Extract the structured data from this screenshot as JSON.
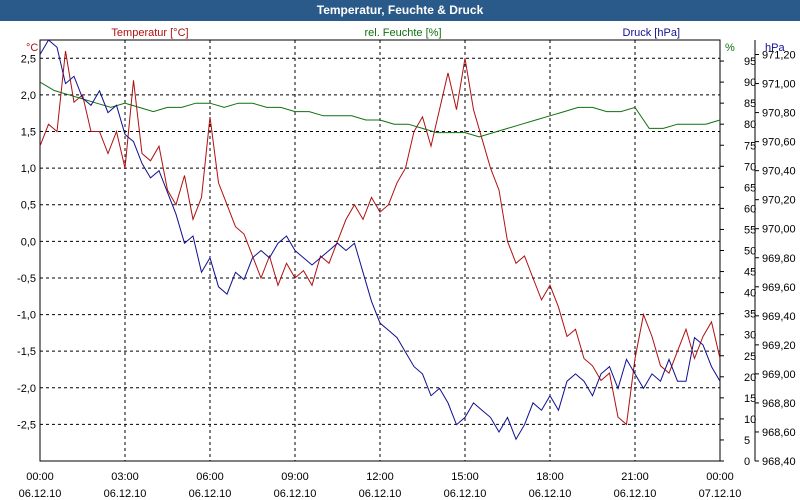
{
  "window": {
    "title": "Temperatur, Feuchte & Druck"
  },
  "chart_data": {
    "type": "line",
    "legend": {
      "temperature": "Temperatur [°C]",
      "humidity": "rel. Feuchte [%]",
      "pressure": "Druck [hPa]"
    },
    "colors": {
      "temperature": "#b01010",
      "humidity": "#107010",
      "pressure": "#101090"
    },
    "y_left": {
      "unit": "°C",
      "range": [
        -3.0,
        2.75
      ],
      "ticks": [
        2.5,
        2.0,
        1.5,
        1.0,
        0.5,
        0.0,
        -0.5,
        -1.0,
        -1.5,
        -2.0,
        -2.5
      ],
      "tick_labels": [
        "2,5",
        "2,0",
        "1,5",
        "1,0",
        "0,5",
        "0,0",
        "-0,5",
        "-1,0",
        "-1,5",
        "-2,0",
        "-2,5"
      ]
    },
    "y_mid": {
      "unit": "%",
      "range": [
        0,
        100
      ],
      "ticks": [
        95,
        90,
        85,
        80,
        75,
        70,
        65,
        60,
        55,
        50,
        45,
        40,
        35,
        30,
        25,
        20,
        15,
        10,
        5,
        0
      ],
      "tick_labels": [
        "95",
        "90",
        "85",
        "80",
        "75",
        "70",
        "65",
        "60",
        "55",
        "50",
        "45",
        "40",
        "35",
        "30",
        "25",
        "20",
        "15",
        "10",
        "5",
        "0"
      ]
    },
    "y_right": {
      "unit": "hPa",
      "range": [
        968.4,
        971.3
      ],
      "ticks": [
        971.2,
        971.0,
        970.8,
        970.6,
        970.4,
        970.2,
        970.0,
        969.8,
        969.6,
        969.4,
        969.2,
        969.0,
        968.8,
        968.6,
        968.4
      ],
      "tick_labels": [
        "971,20",
        "971,00",
        "970,80",
        "970,60",
        "970,40",
        "970,20",
        "970,00",
        "969,80",
        "969,60",
        "969,40",
        "969,20",
        "969,00",
        "968,80",
        "968,60",
        "968,40"
      ]
    },
    "x_labels": [
      {
        "time": "00:00",
        "date": "06.12.10"
      },
      {
        "time": "03:00",
        "date": "06.12.10"
      },
      {
        "time": "06:00",
        "date": "06.12.10"
      },
      {
        "time": "09:00",
        "date": "06.12.10"
      },
      {
        "time": "12:00",
        "date": "06.12.10"
      },
      {
        "time": "15:00",
        "date": "06.12.10"
      },
      {
        "time": "18:00",
        "date": "06.12.10"
      },
      {
        "time": "21:00",
        "date": "06.12.10"
      },
      {
        "time": "00:00",
        "date": "07.12.10"
      }
    ],
    "x_range_hours": [
      0,
      24
    ],
    "grid": true,
    "series": [
      {
        "key": "temperature",
        "name": "Temperatur [°C]",
        "axis": "left",
        "x": [
          0,
          0.3,
          0.6,
          0.9,
          1.2,
          1.5,
          1.8,
          2.1,
          2.4,
          2.7,
          3.0,
          3.3,
          3.6,
          3.9,
          4.2,
          4.5,
          4.8,
          5.1,
          5.4,
          5.7,
          6.0,
          6.3,
          6.6,
          6.9,
          7.2,
          7.5,
          7.8,
          8.1,
          8.4,
          8.7,
          9.0,
          9.3,
          9.6,
          9.9,
          10.2,
          10.5,
          10.8,
          11.1,
          11.4,
          11.7,
          12.0,
          12.3,
          12.6,
          12.9,
          13.2,
          13.5,
          13.8,
          14.1,
          14.4,
          14.7,
          15.0,
          15.3,
          15.6,
          15.9,
          16.2,
          16.5,
          16.8,
          17.1,
          17.4,
          17.7,
          18.0,
          18.3,
          18.6,
          18.9,
          19.2,
          19.5,
          19.8,
          20.1,
          20.4,
          20.7,
          21.0,
          21.3,
          21.6,
          21.9,
          22.2,
          22.5,
          22.8,
          23.1,
          23.4,
          23.7,
          24.0
        ],
        "values": [
          1.3,
          1.6,
          1.5,
          2.6,
          1.9,
          2.0,
          1.5,
          1.5,
          1.2,
          1.5,
          1.0,
          2.2,
          1.2,
          1.1,
          1.3,
          0.7,
          0.5,
          0.9,
          0.3,
          0.6,
          1.7,
          0.8,
          0.5,
          0.2,
          0.1,
          -0.2,
          -0.5,
          -0.2,
          -0.6,
          -0.3,
          -0.5,
          -0.4,
          -0.6,
          -0.2,
          -0.3,
          0.0,
          0.3,
          0.5,
          0.3,
          0.6,
          0.4,
          0.5,
          0.8,
          1.0,
          1.5,
          1.7,
          1.3,
          1.8,
          2.3,
          1.8,
          2.5,
          1.8,
          1.4,
          1.0,
          0.7,
          0.0,
          -0.3,
          -0.2,
          -0.5,
          -0.8,
          -0.6,
          -0.9,
          -1.3,
          -1.2,
          -1.6,
          -1.7,
          -1.9,
          -1.8,
          -2.4,
          -2.5,
          -1.6,
          -1.0,
          -1.3,
          -1.7,
          -1.8,
          -1.5,
          -1.2,
          -1.6,
          -1.3,
          -1.1,
          -1.6
        ]
      },
      {
        "key": "humidity",
        "name": "rel. Feuchte [%]",
        "axis": "mid",
        "x": [
          0,
          0.5,
          1.0,
          1.5,
          2.0,
          2.5,
          3.0,
          3.5,
          4.0,
          4.5,
          5.0,
          5.5,
          6.0,
          6.5,
          7.0,
          7.5,
          8.0,
          8.5,
          9.0,
          9.5,
          10.0,
          10.5,
          11.0,
          11.5,
          12.0,
          12.5,
          13.0,
          13.5,
          14.0,
          14.5,
          15.0,
          15.5,
          16.0,
          16.5,
          17.0,
          17.5,
          18.0,
          18.5,
          19.0,
          19.5,
          20.0,
          20.5,
          21.0,
          21.5,
          22.0,
          22.5,
          23.0,
          23.5,
          24.0
        ],
        "values": [
          90,
          88,
          87,
          86,
          85,
          84,
          85,
          84,
          83,
          84,
          84,
          85,
          85,
          84,
          85,
          85,
          84,
          84,
          83,
          83,
          82,
          82,
          82,
          81,
          81,
          80,
          80,
          79,
          78,
          78,
          78,
          77,
          78,
          79,
          80,
          81,
          82,
          83,
          84,
          84,
          83,
          83,
          84,
          79,
          79,
          80,
          80,
          80,
          81
        ]
      },
      {
        "key": "pressure",
        "name": "Druck [hPa]",
        "axis": "right",
        "x": [
          0,
          0.3,
          0.6,
          0.9,
          1.2,
          1.5,
          1.8,
          2.1,
          2.4,
          2.7,
          3.0,
          3.3,
          3.6,
          3.9,
          4.2,
          4.5,
          4.8,
          5.1,
          5.4,
          5.7,
          6.0,
          6.3,
          6.6,
          6.9,
          7.2,
          7.5,
          7.8,
          8.1,
          8.4,
          8.7,
          9.0,
          9.3,
          9.6,
          9.9,
          10.2,
          10.5,
          10.8,
          11.1,
          11.4,
          11.7,
          12.0,
          12.3,
          12.6,
          12.9,
          13.2,
          13.5,
          13.8,
          14.1,
          14.4,
          14.7,
          15.0,
          15.3,
          15.6,
          15.9,
          16.2,
          16.5,
          16.8,
          17.1,
          17.4,
          17.7,
          18.0,
          18.3,
          18.6,
          18.9,
          19.2,
          19.5,
          19.8,
          20.1,
          20.4,
          20.7,
          21.0,
          21.3,
          21.6,
          21.9,
          22.2,
          22.5,
          22.8,
          23.1,
          23.4,
          23.7,
          24.0
        ],
        "values": [
          971.2,
          971.3,
          971.25,
          971.0,
          971.05,
          970.9,
          970.85,
          970.95,
          970.8,
          970.85,
          970.65,
          970.6,
          970.45,
          970.35,
          970.4,
          970.25,
          970.1,
          969.9,
          969.95,
          969.7,
          969.8,
          969.6,
          969.55,
          969.7,
          969.65,
          969.8,
          969.85,
          969.8,
          969.9,
          969.95,
          969.85,
          969.8,
          969.75,
          969.8,
          969.85,
          969.9,
          969.85,
          969.9,
          969.7,
          969.5,
          969.35,
          969.3,
          969.25,
          969.15,
          969.05,
          969.0,
          968.85,
          968.9,
          968.8,
          968.65,
          968.7,
          968.8,
          968.75,
          968.7,
          968.6,
          968.7,
          968.55,
          968.65,
          968.8,
          968.75,
          968.85,
          968.75,
          968.95,
          969.0,
          968.95,
          968.85,
          969.0,
          969.05,
          968.9,
          969.1,
          969.0,
          968.9,
          969.0,
          968.95,
          969.1,
          968.95,
          968.95,
          969.25,
          969.2,
          969.05,
          968.95
        ]
      }
    ]
  }
}
